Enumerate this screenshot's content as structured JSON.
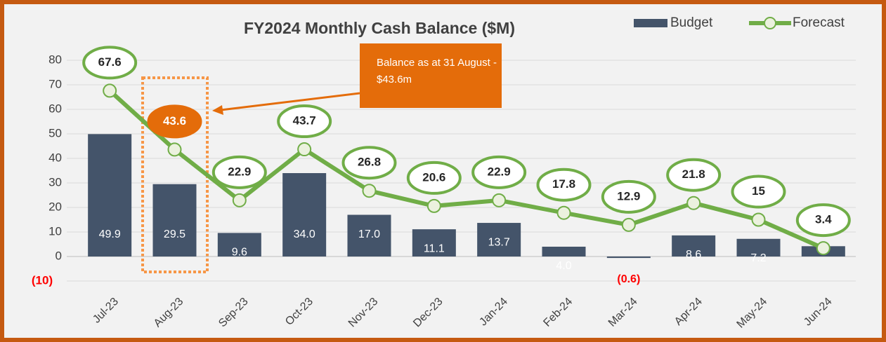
{
  "chart_data": {
    "type": "bar_line",
    "title": "FY2024 Monthly Cash Balance ($M)",
    "annotation": "Balance as at 31 August - $43.6m",
    "categories": [
      "Jul-23",
      "Aug-23",
      "Sep-23",
      "Oct-23",
      "Nov-23",
      "Dec-23",
      "Jan-24",
      "Feb-24",
      "Mar-24",
      "Apr-24",
      "May-24",
      "Jun-24"
    ],
    "series": [
      {
        "name": "Budget",
        "type": "bar",
        "color": "#44546a",
        "values": [
          49.9,
          29.5,
          9.6,
          34.0,
          17.0,
          11.1,
          13.7,
          4.0,
          -0.6,
          8.6,
          7.2,
          4.2
        ],
        "value_labels": [
          "49.9",
          "29.5",
          "9.6",
          "34.0",
          "17.0",
          "11.1",
          "13.7",
          "4.0",
          "(0.6)",
          "8.6",
          "7.2",
          null
        ]
      },
      {
        "name": "Forecast",
        "type": "line",
        "color": "#70ad47",
        "values": [
          67.6,
          43.6,
          22.9,
          43.7,
          26.8,
          20.6,
          22.9,
          17.8,
          12.9,
          21.8,
          15.0,
          3.4
        ],
        "highlight": 1,
        "highlight_color": "#e46c0a"
      }
    ],
    "ylim": [
      -10,
      80
    ],
    "yticks": [
      {
        "value": -10,
        "label": "(10)"
      },
      0,
      10,
      20,
      30,
      40,
      50,
      60,
      70,
      80
    ],
    "grid": true,
    "legend": "top-right"
  }
}
